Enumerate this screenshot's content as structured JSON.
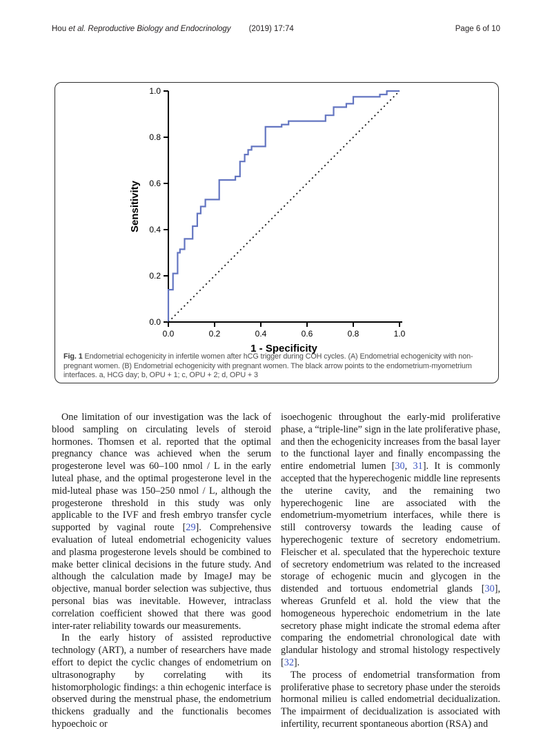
{
  "header": {
    "author": "Hou ",
    "journal": "et al. Reproductive Biology and Endocrinology",
    "citation": "(2019) 17:74",
    "page": "Page 6 of 10"
  },
  "figure": {
    "caption_label": "Fig. 1",
    "caption_text": " Endometrial echogenicity in infertile women after hCG trigger during COH cycles. (A) Endometrial echogenicity with non-pregnant women. (B) Endometrial echogenicity with pregnant women. The black arrow points to the endometrium-myometrium interfaces. a, HCG day; b, OPU + 1; c, OPU + 2; d, OPU + 3"
  },
  "chart_data": {
    "type": "line",
    "subtype": "roc-step-curve",
    "title": "",
    "xlabel": "1 - Specificity",
    "ylabel": "Sensitivity",
    "xlim": [
      0,
      1
    ],
    "ylim": [
      0,
      1
    ],
    "xtick_labels": [
      "0.0",
      "0.2",
      "0.4",
      "0.6",
      "0.8",
      "1.0"
    ],
    "ytick_labels": [
      "0.0",
      "0.2",
      "0.4",
      "0.6",
      "0.8",
      "1.0"
    ],
    "grid": false,
    "legend": "none",
    "axis_color": "#000000",
    "series": [
      {
        "name": "ROC curve",
        "style": "solid",
        "color": "#6375c1",
        "points": [
          [
            0,
            0
          ],
          [
            0,
            0.14
          ],
          [
            0.02,
            0.14
          ],
          [
            0.02,
            0.21
          ],
          [
            0.04,
            0.21
          ],
          [
            0.04,
            0.3
          ],
          [
            0.05,
            0.3
          ],
          [
            0.05,
            0.315
          ],
          [
            0.07,
            0.315
          ],
          [
            0.07,
            0.36
          ],
          [
            0.105,
            0.36
          ],
          [
            0.105,
            0.415
          ],
          [
            0.125,
            0.415
          ],
          [
            0.125,
            0.47
          ],
          [
            0.14,
            0.47
          ],
          [
            0.14,
            0.5
          ],
          [
            0.16,
            0.5
          ],
          [
            0.16,
            0.53
          ],
          [
            0.22,
            0.53
          ],
          [
            0.22,
            0.615
          ],
          [
            0.29,
            0.615
          ],
          [
            0.29,
            0.63
          ],
          [
            0.31,
            0.63
          ],
          [
            0.31,
            0.695
          ],
          [
            0.33,
            0.695
          ],
          [
            0.33,
            0.725
          ],
          [
            0.345,
            0.725
          ],
          [
            0.345,
            0.745
          ],
          [
            0.36,
            0.745
          ],
          [
            0.36,
            0.76
          ],
          [
            0.42,
            0.76
          ],
          [
            0.42,
            0.845
          ],
          [
            0.49,
            0.845
          ],
          [
            0.49,
            0.855
          ],
          [
            0.52,
            0.855
          ],
          [
            0.52,
            0.87
          ],
          [
            0.68,
            0.87
          ],
          [
            0.68,
            0.895
          ],
          [
            0.715,
            0.895
          ],
          [
            0.715,
            0.93
          ],
          [
            0.77,
            0.93
          ],
          [
            0.77,
            0.945
          ],
          [
            0.8,
            0.945
          ],
          [
            0.8,
            0.975
          ],
          [
            0.915,
            0.975
          ],
          [
            0.915,
            0.985
          ],
          [
            0.945,
            0.985
          ],
          [
            0.945,
            1.0
          ],
          [
            1.0,
            1.0
          ]
        ]
      },
      {
        "name": "Reference line",
        "style": "dotted",
        "color": "#111111",
        "points": [
          [
            0,
            0
          ],
          [
            1,
            1
          ]
        ]
      }
    ]
  },
  "body": {
    "ref_color": "#3a53c0",
    "columns": [
      {
        "paragraphs": [
          {
            "indent": true,
            "segments": [
              {
                "t": "One limitation of our investigation was the lack of blood sampling on circulating levels of steroid hormones. Thomsen et al. reported that the optimal pregnancy chance was achieved when the serum progesterone level was 60–100 nmol / L in the early luteal phase, and the optimal progesterone level in the mid-luteal phase was 150–250 nmol / L, although the progesterone threshold in this study was only applicable to the IVF and fresh embryo transfer cycle supported by vaginal route ["
              },
              {
                "ref": "29"
              },
              {
                "t": "]. Comprehensive evaluation of luteal endometrial echogenicity values and plasma progesterone levels should be combined to make better clinical decisions in the future study. And although the calculation made by ImageJ may be objective, manual border selection was subjective, thus personal bias was inevitable. However, intraclass correlation coefficient showed that there was good inter-rater reliability towards our measurements."
              }
            ]
          },
          {
            "indent": true,
            "segments": [
              {
                "t": "In the early history of assisted reproductive technology (ART), a number of researchers have made effort to depict the cyclic changes of endometrium on ultrasonography by correlating with its histomorphologic findings: a thin echogenic interface is observed during the menstrual phase, the endometrium thickens gradually and the functionalis becomes hypoechoic or"
              }
            ]
          }
        ]
      },
      {
        "paragraphs": [
          {
            "indent": false,
            "segments": [
              {
                "t": "isoechogenic throughout the early-mid proliferative phase, a “triple-line” sign in the late proliferative phase, and then the echogenicity increases from the basal layer to the functional layer and finally encompassing the entire endometrial lumen ["
              },
              {
                "ref": "30"
              },
              {
                "t": ", "
              },
              {
                "ref": "31"
              },
              {
                "t": "]. It is commonly accepted that the hyperechogenic middle line represents the uterine cavity, and the remaining two hyperechogenic line are associated with the endometrium-myometrium interfaces, while there is still controversy towards the leading cause of hyperechogenic texture of secretory endometrium. Fleischer et al. speculated that the hyperechoic texture of secretory endometrium was related to the increased storage of echogenic mucin and glycogen in the distended and tortuous endometrial glands ["
              },
              {
                "ref": "30"
              },
              {
                "t": "], whereas Grunfeld et al. hold the view that the homogeneous hyperechoic endometrium in the late secretory phase might indicate the stromal edema after comparing the endometrial chronological date with glandular histology and stromal histology respectively ["
              },
              {
                "ref": "32"
              },
              {
                "t": "]."
              }
            ]
          },
          {
            "indent": true,
            "segments": [
              {
                "t": "The process of endometrial transformation from proliferative phase to secretory phase under the steroids hormonal milieu is called endometrial decidualization. The impairment of decidualization is associated with infertility, recurrent spontaneous abortion (RSA) and"
              }
            ]
          }
        ]
      }
    ]
  }
}
